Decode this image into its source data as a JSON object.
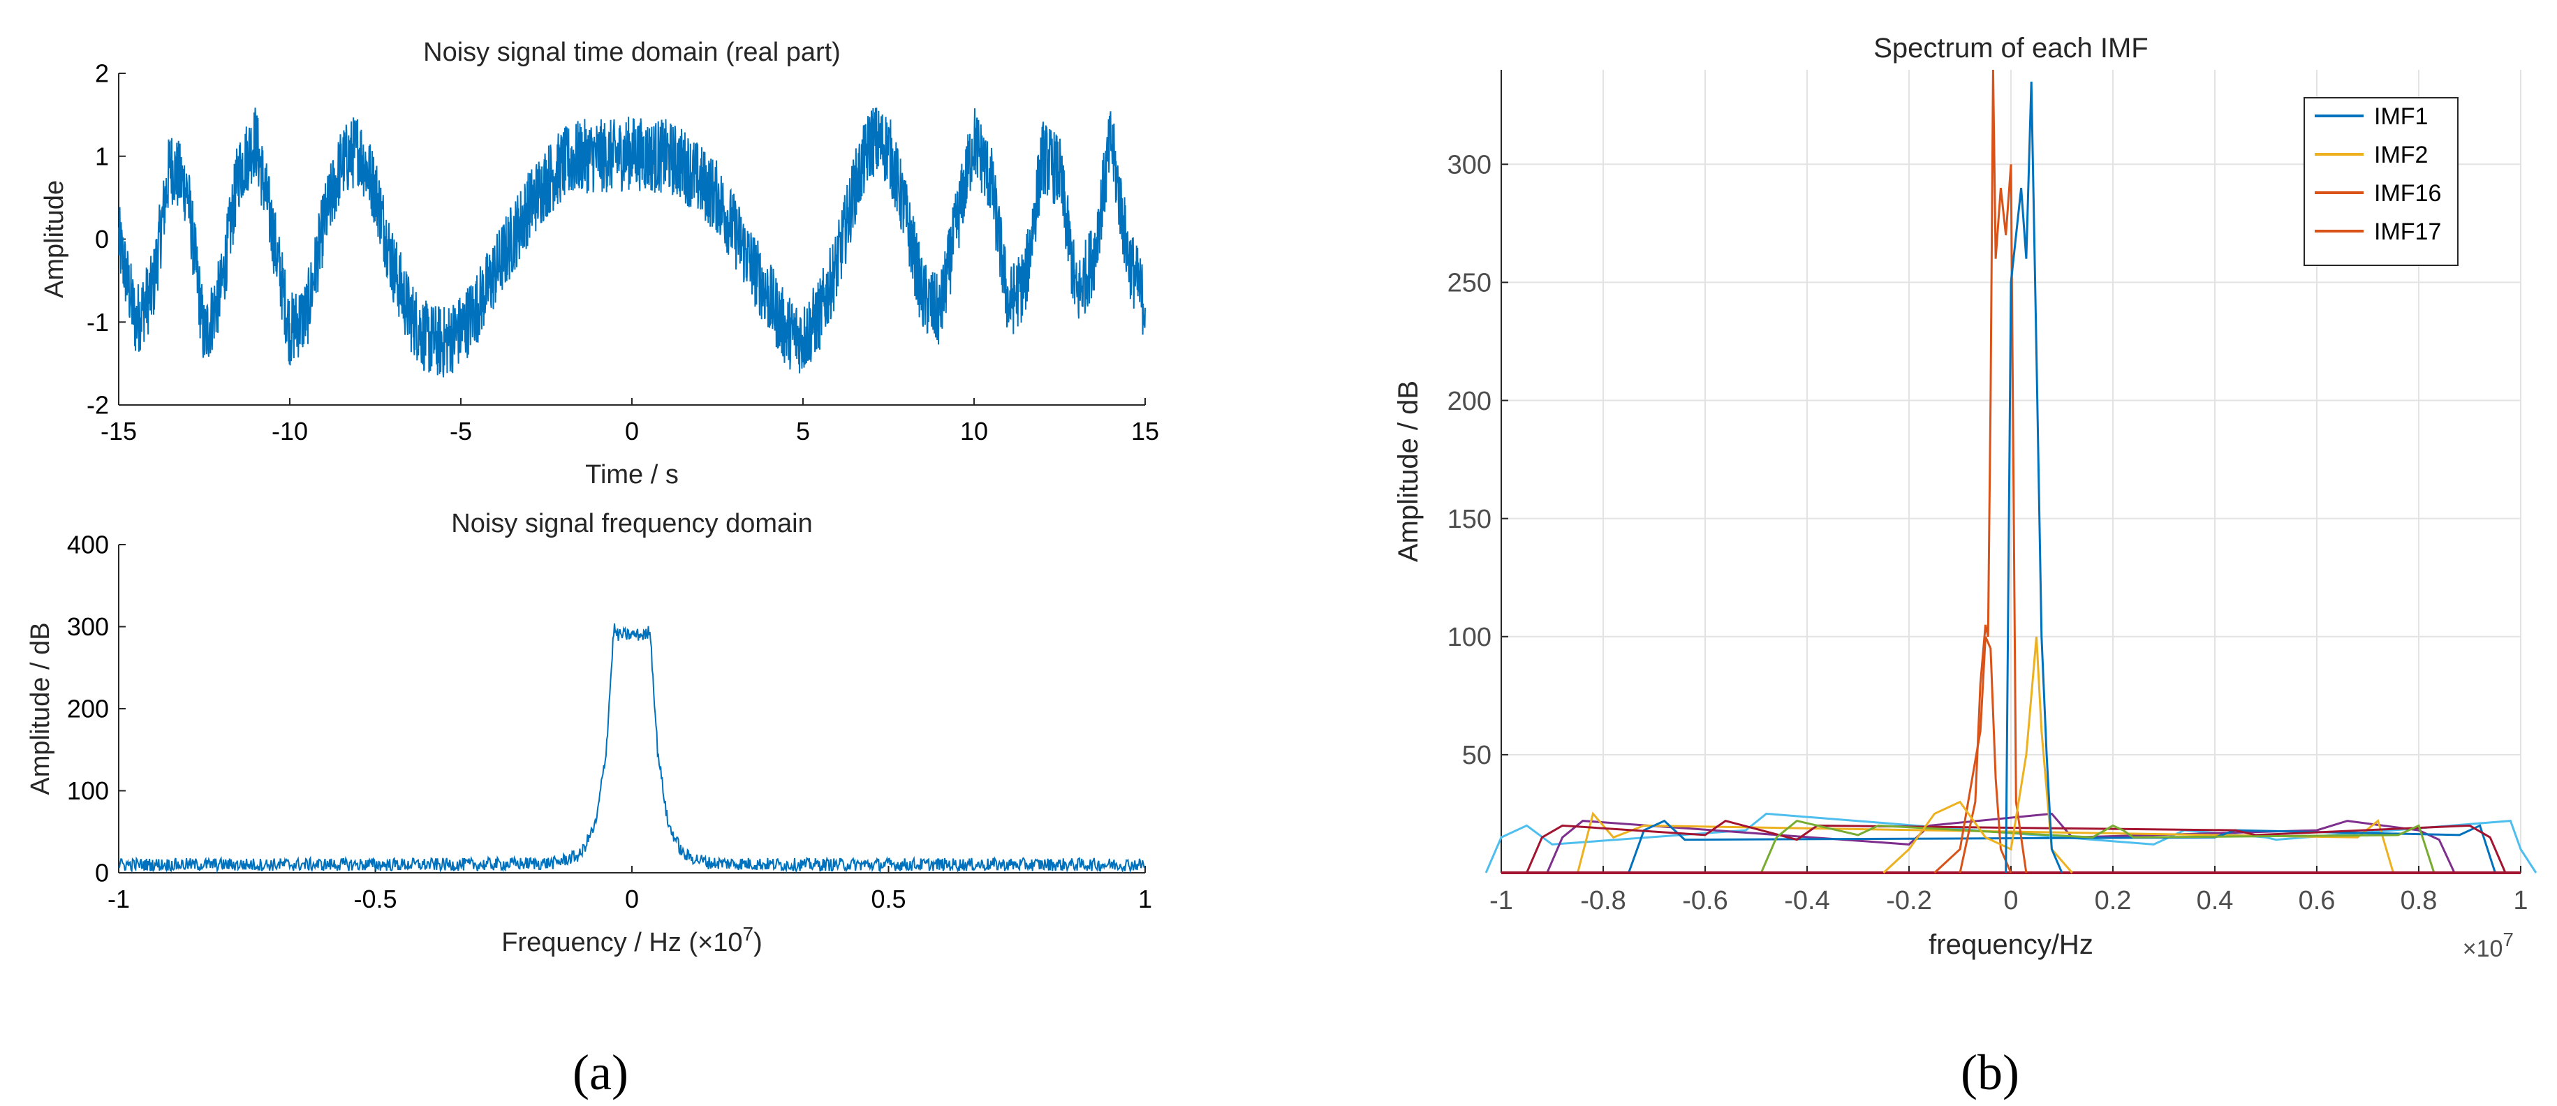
{
  "panel_labels": {
    "a": "(a)",
    "b": "(b)"
  },
  "chart_data": [
    {
      "id": "time",
      "type": "line",
      "title": "Noisy signal time domain (real part)",
      "xlabel": "Time / s",
      "ylabel": "Amplitude",
      "xlim": [
        -15,
        15
      ],
      "ylim": [
        -2,
        2
      ],
      "xticks": [
        -15,
        -10,
        -5,
        0,
        5,
        10,
        15
      ],
      "yticks": [
        -2,
        -1,
        0,
        1,
        2
      ],
      "grid": false,
      "color": "#0072BD",
      "x": [
        -15,
        -14.5,
        -14,
        -13.5,
        -13,
        -12.5,
        -12,
        -11.5,
        -11,
        -10.5,
        -10,
        -9.5,
        -9,
        -8.5,
        -8,
        -7.5,
        -7,
        -6.5,
        -6,
        -5.5,
        -5,
        -4.5,
        -4,
        -3.5,
        -3,
        -2.5,
        -2,
        -1.5,
        -1,
        -0.5,
        0,
        0.5,
        1,
        1.5,
        2,
        2.5,
        3,
        3.5,
        4,
        4.5,
        5,
        5.5,
        6,
        6.5,
        7,
        7.5,
        8,
        8.5,
        9,
        9.5,
        10,
        10.5,
        11,
        11.5,
        12,
        12.5,
        13,
        13.5,
        14,
        14.5,
        15
      ],
      "values": [
        0,
        -1.0,
        -0.6,
        0.9,
        0.6,
        -1.2,
        -0.6,
        0.8,
        1.2,
        0.1,
        -1.1,
        -0.9,
        0.2,
        0.9,
        1.1,
        0.6,
        -0.3,
        -0.9,
        -1.2,
        -1.25,
        -1.1,
        -0.8,
        -0.4,
        0,
        0.4,
        0.7,
        0.9,
        1.0,
        1.0,
        1.0,
        1.05,
        1.0,
        1.0,
        0.9,
        0.7,
        0.5,
        0.1,
        -0.3,
        -0.7,
        -1.1,
        -1.2,
        -0.9,
        -0.3,
        0.6,
        1.2,
        1.1,
        0.3,
        -0.7,
        -0.9,
        0.2,
        1.2,
        0.7,
        -0.8,
        -0.5,
        1.0,
        0.8,
        -0.7,
        -0.2,
        1.2,
        -0.2,
        -0.8
      ],
      "noise_amplitude": 0.45
    },
    {
      "id": "freq",
      "type": "line",
      "title": "Noisy signal frequency domain",
      "xlabel": "Frequency / Hz (×10",
      "xlabel_exponent": "7",
      "xlabel_suffix": ")",
      "ylabel": "Amplitude / dB",
      "xlim": [
        -1,
        1
      ],
      "ylim": [
        0,
        400
      ],
      "xticks": [
        -1,
        -0.5,
        0,
        0.5,
        1
      ],
      "yticks": [
        0,
        100,
        200,
        300,
        400
      ],
      "grid": false,
      "color": "#0072BD",
      "x": [
        -1,
        -0.3,
        -0.15,
        -0.1,
        -0.07,
        -0.05,
        -0.04,
        -0.035,
        -0.03,
        0.03,
        0.035,
        0.04,
        0.05,
        0.07,
        0.1,
        0.15,
        0.3,
        1
      ],
      "values": [
        10,
        10,
        12,
        22,
        60,
        150,
        250,
        300,
        290,
        290,
        300,
        250,
        150,
        60,
        22,
        12,
        10,
        10
      ],
      "noise_amplitude": 8
    },
    {
      "id": "imf",
      "type": "line",
      "title": "Spectrum of each IMF",
      "xlabel": "frequency/Hz",
      "ylabel": "Amplitude / dB",
      "x_multiplier": "×10",
      "x_multiplier_exponent": "7",
      "xlim": [
        -1,
        1
      ],
      "ylim": [
        0,
        340
      ],
      "xticks": [
        -1,
        -0.8,
        -0.6,
        -0.4,
        -0.2,
        0,
        0.2,
        0.4,
        0.6,
        0.8,
        1
      ],
      "yticks": [
        50,
        100,
        150,
        200,
        250,
        300
      ],
      "grid": true,
      "legend_position": "top-right",
      "series": [
        {
          "name": "IMF1",
          "color": "#0072BD",
          "x": [
            -0.01,
            0.0,
            0.02,
            0.03,
            0.04,
            0.05,
            0.06,
            0.07,
            0.08,
            0.1
          ],
          "values": [
            0,
            250,
            290,
            260,
            335,
            220,
            100,
            50,
            10,
            0
          ]
        },
        {
          "name": "IMF2",
          "color": "#EDB120",
          "x": [
            -0.25,
            -0.2,
            -0.15,
            -0.1,
            -0.05,
            0.0,
            0.03,
            0.05,
            0.06,
            0.08,
            0.12
          ],
          "values": [
            0,
            10,
            25,
            30,
            15,
            10,
            50,
            100,
            60,
            10,
            0
          ]
        },
        {
          "name": "IMF16",
          "color": "#D95319",
          "x": [
            -0.1,
            -0.07,
            -0.06,
            -0.05,
            -0.045,
            -0.04,
            -0.035,
            -0.03,
            -0.02,
            -0.01,
            0.0,
            0.01,
            0.03
          ],
          "values": [
            0,
            30,
            80,
            105,
            100,
            200,
            340,
            260,
            290,
            270,
            300,
            30,
            0
          ]
        },
        {
          "name": "IMF17",
          "color": "#D95319",
          "x": [
            -0.15,
            -0.1,
            -0.06,
            -0.05,
            -0.04,
            -0.03,
            -0.02,
            0.0
          ],
          "values": [
            0,
            10,
            60,
            100,
            95,
            40,
            10,
            0
          ]
        }
      ],
      "background_series": [
        {
          "color": "#4DBEEE",
          "x": [
            -1,
            -0.95,
            -0.9,
            -0.52,
            -0.48,
            0.28,
            0.34,
            0.5,
            0.52,
            0.98,
            1
          ],
          "values": [
            15,
            20,
            12,
            18,
            25,
            12,
            18,
            15,
            14,
            22,
            10
          ]
        },
        {
          "color": "#7E2F8E",
          "x": [
            -0.88,
            -0.84,
            -0.2,
            -0.16,
            0.08,
            0.12,
            0.6,
            0.66,
            0.8,
            0.84
          ],
          "values": [
            15,
            22,
            12,
            20,
            25,
            15,
            18,
            22,
            18,
            14
          ]
        },
        {
          "color": "#EDB120",
          "x": [
            -0.82,
            -0.78,
            -0.72,
            0.68,
            0.72
          ],
          "values": [
            25,
            15,
            20,
            15,
            22
          ]
        },
        {
          "color": "#0072BD",
          "x": [
            -0.72,
            -0.68,
            -0.64,
            0.4,
            0.44,
            0.88,
            0.92
          ],
          "values": [
            18,
            22,
            14,
            15,
            18,
            16,
            20
          ]
        },
        {
          "color": "#A2142F",
          "x": [
            -0.92,
            -0.88,
            -0.6,
            -0.56,
            -0.42,
            -0.38,
            0.44,
            0.48,
            0.9,
            0.94
          ],
          "values": [
            15,
            20,
            16,
            22,
            14,
            20,
            18,
            16,
            20,
            15
          ]
        },
        {
          "color": "#77AC30",
          "x": [
            -0.46,
            -0.42,
            -0.3,
            -0.26,
            0.16,
            0.2,
            0.22,
            0.24,
            0.76,
            0.8
          ],
          "values": [
            15,
            22,
            16,
            20,
            15,
            20,
            18,
            15,
            16,
            20
          ]
        }
      ]
    }
  ]
}
